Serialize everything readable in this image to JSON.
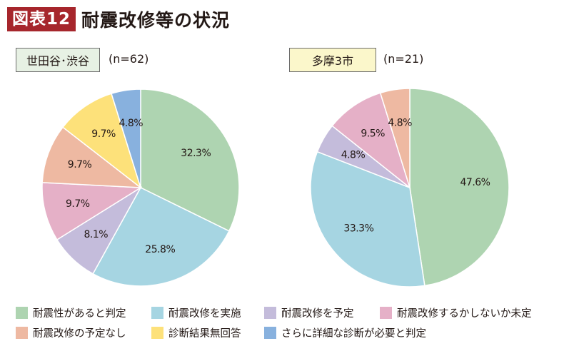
{
  "header": {
    "badge": "図表12",
    "title": "耐震改修等の状況"
  },
  "panels": [
    {
      "label": "世田谷･渋谷",
      "n": "(n=62)"
    },
    {
      "label": "多摩3市",
      "n": "(n=21)"
    }
  ],
  "colors": {
    "retrofit_not_needed": "#aed4b1",
    "retrofit_done": "#a6d5e2",
    "retrofit_planned": "#c4bcdb",
    "needed_not_done": "#e5b0c7",
    "no_plan": "#eeb9a2",
    "not_diagnosed": "#fde17a",
    "diagnosis_needed": "#88b1de"
  },
  "chart_data": [
    {
      "type": "pie",
      "title": "世田谷･渋谷",
      "n": 62,
      "start": "12 o'clock, clockwise",
      "slices": [
        {
          "key": "retrofit_not_needed",
          "label": "耐震性があると判定",
          "value": 32.3,
          "display": "32.3%"
        },
        {
          "key": "retrofit_done",
          "label": "耐震改修を実施",
          "value": 25.8,
          "display": "25.8%"
        },
        {
          "key": "retrofit_planned",
          "label": "耐震改修を予定",
          "value": 8.1,
          "display": "8.1%"
        },
        {
          "key": "needed_not_done",
          "label": "耐震改修するかしないか未定",
          "value": 9.7,
          "display": "9.7%"
        },
        {
          "key": "no_plan",
          "label": "耐震改修の予定なし",
          "value": 9.7,
          "display": "9.7%"
        },
        {
          "key": "not_diagnosed",
          "label": "診断結果無回答",
          "value": 9.7,
          "display": "9.7%"
        },
        {
          "key": "diagnosis_needed",
          "label": "さらに詳細な診断が必要と判定",
          "value": 4.8,
          "display": "4.8%"
        }
      ]
    },
    {
      "type": "pie",
      "title": "多摩3市",
      "n": 21,
      "start": "12 o'clock, clockwise",
      "slices": [
        {
          "key": "retrofit_not_needed",
          "label": "耐震性があると判定",
          "value": 47.6,
          "display": "47.6%"
        },
        {
          "key": "retrofit_done",
          "label": "耐震改修を実施",
          "value": 33.3,
          "display": "33.3%"
        },
        {
          "key": "retrofit_planned",
          "label": "耐震改修を予定",
          "value": 4.8,
          "display": "4.8%"
        },
        {
          "key": "needed_not_done",
          "label": "耐震改修するかしないか未定",
          "value": 9.5,
          "display": "9.5%"
        },
        {
          "key": "no_plan",
          "label": "耐震改修の予定なし",
          "value": 4.8,
          "display": "4.8%"
        }
      ]
    }
  ],
  "legend": {
    "rows": [
      [
        {
          "key": "retrofit_not_needed",
          "label": "耐震性があると判定"
        },
        {
          "key": "retrofit_done",
          "label": "耐震改修を実施"
        },
        {
          "key": "retrofit_planned",
          "label": "耐震改修を予定"
        },
        {
          "key": "needed_not_done",
          "label": "耐震改修するかしないか未定"
        }
      ],
      [
        {
          "key": "no_plan",
          "label": "耐震改修の予定なし"
        },
        {
          "key": "not_diagnosed",
          "label": "診断結果無回答"
        },
        {
          "key": "diagnosis_needed",
          "label": "さらに詳細な診断が必要と判定"
        }
      ]
    ]
  }
}
